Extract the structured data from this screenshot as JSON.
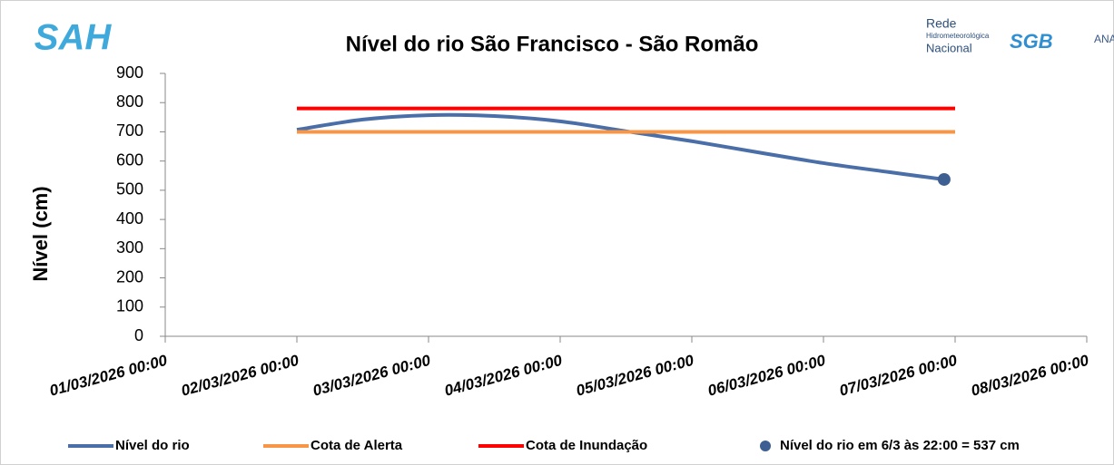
{
  "logos": {
    "sah": "SAH",
    "rede": [
      "Rede",
      "Hidrometeorológica",
      "Nacional"
    ],
    "sgb": "SGB",
    "ana": "ANA"
  },
  "chart_data": {
    "type": "line",
    "title": "Nível do rio São Francisco - São Romão",
    "y_label": "Nível (cm)",
    "xlim": [
      "2026-03-01T00:00",
      "2026-03-08T00:00"
    ],
    "xticks": [
      {
        "value": "2026-03-01T00:00",
        "label": "01/03/2026 00:00"
      },
      {
        "value": "2026-03-02T00:00",
        "label": "02/03/2026 00:00"
      },
      {
        "value": "2026-03-03T00:00",
        "label": "03/03/2026 00:00"
      },
      {
        "value": "2026-03-04T00:00",
        "label": "04/03/2026 00:00"
      },
      {
        "value": "2026-03-05T00:00",
        "label": "05/03/2026 00:00"
      },
      {
        "value": "2026-03-06T00:00",
        "label": "06/03/2026 00:00"
      },
      {
        "value": "2026-03-07T00:00",
        "label": "07/03/2026 00:00"
      },
      {
        "value": "2026-03-08T00:00",
        "label": "08/03/2026 00:00"
      }
    ],
    "ylim": [
      0,
      900
    ],
    "yticks": [
      0,
      100,
      200,
      300,
      400,
      500,
      600,
      700,
      800,
      900
    ],
    "series": [
      {
        "name": "Nível do rio",
        "color": "#4a6ea8",
        "style": "line",
        "x": [
          "2026-03-02T00:00",
          "2026-03-02T12:00",
          "2026-03-03T00:00",
          "2026-03-03T12:00",
          "2026-03-04T00:00",
          "2026-03-04T12:00",
          "2026-03-05T00:00",
          "2026-03-05T12:00",
          "2026-03-06T00:00",
          "2026-03-06T12:00",
          "2026-03-06T22:00"
        ],
        "values": [
          707,
          742,
          757,
          754,
          736,
          702,
          668,
          630,
          593,
          562,
          537
        ]
      },
      {
        "name": "Cota de Alerta",
        "color": "#f79646",
        "style": "line",
        "x": [
          "2026-03-02T00:00",
          "2026-03-07T00:00"
        ],
        "values": [
          700,
          700
        ]
      },
      {
        "name": "Cota de Inundação",
        "color": "#ff0000",
        "style": "line",
        "x": [
          "2026-03-02T00:00",
          "2026-03-07T00:00"
        ],
        "values": [
          780,
          780
        ]
      },
      {
        "name": "Nível do rio em 6/3 às 22:00 = 537 cm",
        "color": "#3d5f91",
        "style": "marker",
        "x": [
          "2026-03-06T22:00"
        ],
        "values": [
          537
        ]
      }
    ]
  }
}
